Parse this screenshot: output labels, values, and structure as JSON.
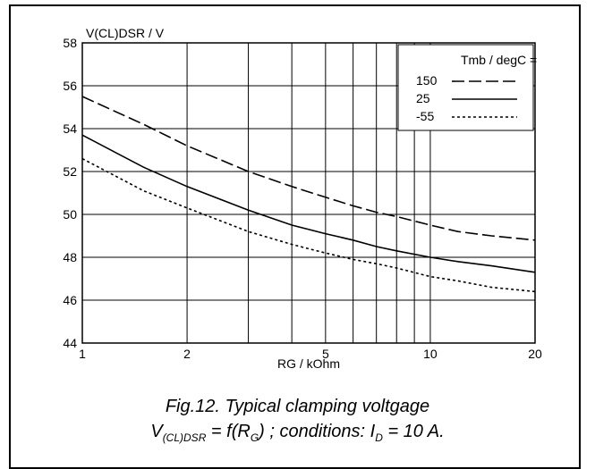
{
  "chart_data": {
    "type": "line",
    "ylabel": "V(CL)DSR / V",
    "xlabel": "RG / kOhm",
    "x_scale": "log",
    "xlim": [
      1,
      20
    ],
    "ylim": [
      44,
      58
    ],
    "x_ticks": [
      1,
      2,
      5,
      10,
      20
    ],
    "x_tick_labels": [
      "1",
      "2",
      "5",
      "10",
      "20"
    ],
    "y_ticks": [
      44,
      46,
      48,
      50,
      52,
      54,
      56,
      58
    ],
    "y_tick_labels": [
      "44",
      "46",
      "48",
      "50",
      "52",
      "54",
      "56",
      "58"
    ],
    "grid": true,
    "legend_title": "Tmb / degC =",
    "legend_position": "top-right",
    "series": [
      {
        "name": "150",
        "style": "dashed",
        "x": [
          1,
          1.5,
          2,
          3,
          4,
          5,
          6,
          7,
          8,
          10,
          12,
          15,
          20
        ],
        "y": [
          55.5,
          54.2,
          53.2,
          52.0,
          51.3,
          50.8,
          50.4,
          50.1,
          49.9,
          49.5,
          49.2,
          49.0,
          48.8
        ]
      },
      {
        "name": "25",
        "style": "solid",
        "x": [
          1,
          1.5,
          2,
          3,
          4,
          5,
          6,
          7,
          8,
          10,
          12,
          15,
          20
        ],
        "y": [
          53.7,
          52.2,
          51.3,
          50.2,
          49.5,
          49.1,
          48.8,
          48.5,
          48.3,
          48.0,
          47.8,
          47.6,
          47.3
        ]
      },
      {
        "name": "-55",
        "style": "dotted",
        "x": [
          1,
          1.5,
          2,
          3,
          4,
          5,
          6,
          7,
          8,
          10,
          12,
          15,
          20
        ],
        "y": [
          52.6,
          51.1,
          50.3,
          49.2,
          48.6,
          48.2,
          47.9,
          47.7,
          47.5,
          47.1,
          46.9,
          46.6,
          46.4
        ]
      }
    ]
  },
  "caption": {
    "line1": "Fig.12.   Typical clamping voltgage",
    "l2_v": "V",
    "l2_v_sub": "(CL)DSR",
    "l2_mid": " = f(R",
    "l2_r_sub": "G",
    "l2_mid2": ") ; conditions: I",
    "l2_i_sub": "D",
    "l2_end": " = 10 A."
  }
}
